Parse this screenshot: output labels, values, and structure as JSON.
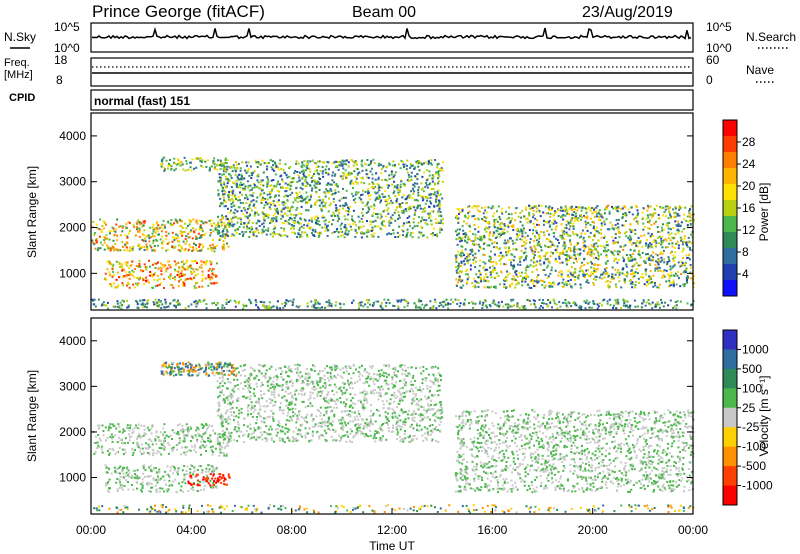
{
  "header": {
    "station": "Prince George (fitACF)",
    "beam": "Beam 00",
    "date": "23/Aug/2019"
  },
  "top_panels": {
    "nsky": {
      "left_label": "N.Sky",
      "right_label": "N.Search",
      "left_ticks": [
        "10^5",
        "10^0"
      ],
      "right_ticks": [
        "10^5",
        "10^0"
      ]
    },
    "freq": {
      "left_label_1": "Freq.",
      "left_label_2": "[MHz]",
      "right_label": "Nave",
      "left_ticks": [
        "18",
        "8"
      ],
      "right_ticks": [
        "60",
        "0"
      ]
    },
    "cpid": {
      "label": "CPID",
      "mode": "normal (fast) 151"
    }
  },
  "colorbars": {
    "power": {
      "label": "Power [dB]",
      "ticks": [
        "28",
        "24",
        "20",
        "16",
        "12",
        "8",
        "4"
      ],
      "colors": [
        "#ff0000",
        "#ff3c00",
        "#ff8000",
        "#ffb400",
        "#ffe000",
        "#b8d010",
        "#4cb84c",
        "#2e8b57",
        "#2f6ea0",
        "#1f3fb0",
        "#1010ff"
      ]
    },
    "velocity": {
      "label": "Velocity [m s⁻¹]",
      "ticks": [
        "1000",
        "500",
        "100",
        "25",
        "-25",
        "-100",
        "-500",
        "-1000"
      ],
      "colors": [
        "#3030c0",
        "#2f6ea0",
        "#2e8b57",
        "#4cb84c",
        "#c8c8c8",
        "#ffd000",
        "#ff9000",
        "#ff4000",
        "#ff0000"
      ]
    }
  },
  "chart_data": [
    {
      "type": "heatmap",
      "title": "Prince George (fitACF)",
      "ylabel": "Slant Range [km]",
      "ylim": [
        200,
        4500
      ],
      "yticks": [
        "1000",
        "2000",
        "3000",
        "4000"
      ],
      "colorbar": "Power [dB]",
      "colorbar_range": [
        0,
        30
      ],
      "x_range": [
        "00:00",
        "24:00"
      ],
      "echo_regions": [
        {
          "label": "near-range ground clutter",
          "time": [
            "00:00",
            "24:00"
          ],
          "range_km": [
            250,
            450
          ],
          "power_db": [
            4,
            16
          ]
        },
        {
          "label": "morning band A",
          "time": [
            "00:00",
            "05:30"
          ],
          "range_km": [
            1500,
            2200
          ],
          "power_db": [
            8,
            26
          ]
        },
        {
          "label": "morning band B",
          "time": [
            "00:30",
            "05:00"
          ],
          "range_km": [
            700,
            1300
          ],
          "power_db": [
            12,
            28
          ]
        },
        {
          "label": "far band",
          "time": [
            "02:45",
            "05:45"
          ],
          "range_km": [
            3250,
            3550
          ],
          "power_db": [
            6,
            20
          ]
        },
        {
          "label": "daytime arc",
          "time": [
            "05:00",
            "14:00"
          ],
          "range_km": [
            1800,
            3500
          ],
          "power_db": [
            4,
            18
          ]
        },
        {
          "label": "afternoon band",
          "time": [
            "14:30",
            "24:00"
          ],
          "range_km": [
            700,
            2500
          ],
          "power_db": [
            4,
            22
          ]
        }
      ]
    },
    {
      "type": "heatmap",
      "ylabel": "Slant Range [km]",
      "xlabel": "Time UT",
      "ylim": [
        200,
        4500
      ],
      "yticks": [
        "1000",
        "2000",
        "3000",
        "4000"
      ],
      "xticks": [
        "00:00",
        "04:00",
        "08:00",
        "12:00",
        "16:00",
        "20:00",
        "00:00"
      ],
      "colorbar": "Velocity [m s⁻¹]",
      "colorbar_range": [
        -1000,
        1000
      ],
      "echo_regions": [
        {
          "label": "morning band B (negative velocity)",
          "time": [
            "03:50",
            "05:40"
          ],
          "range_km": [
            850,
            1100
          ],
          "velocity": [
            -500,
            -1000
          ]
        },
        {
          "label": "far band (mixed)",
          "time": [
            "02:45",
            "05:45"
          ],
          "range_km": [
            3250,
            3550
          ],
          "velocity": [
            -500,
            500
          ]
        },
        {
          "label": "ground scatter (low velocity)",
          "time": [
            "00:00",
            "24:00"
          ],
          "range_km": [
            700,
            3500
          ],
          "velocity": [
            -25,
            25
          ]
        }
      ]
    }
  ]
}
